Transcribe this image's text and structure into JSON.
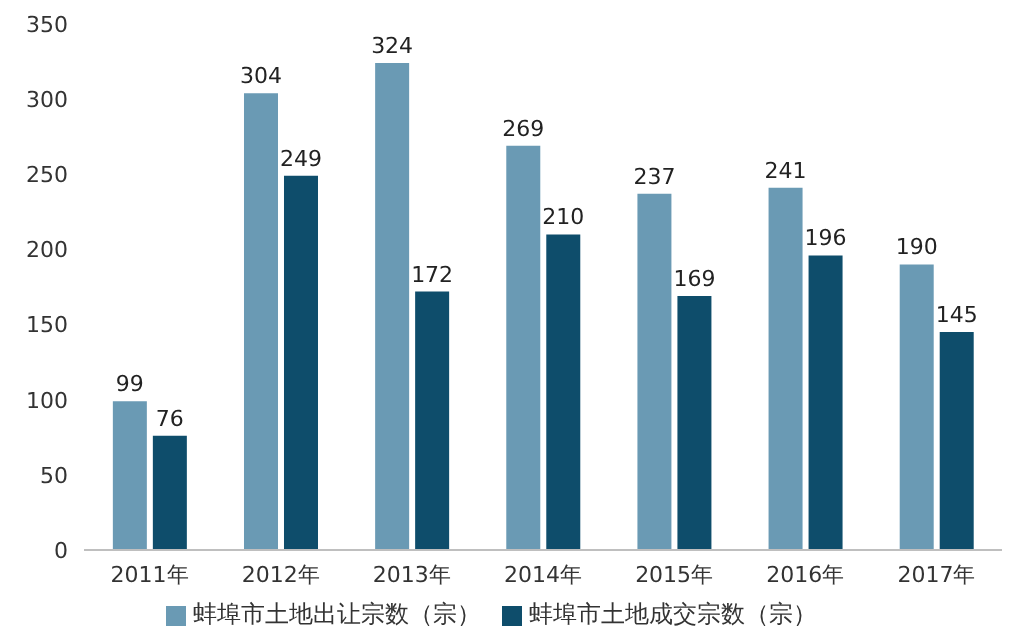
{
  "chart_data": {
    "type": "bar",
    "categories": [
      "2011年",
      "2012年",
      "2013年",
      "2014年",
      "2015年",
      "2016年",
      "2017年"
    ],
    "series": [
      {
        "name": "蚌埠市土地出让宗数（宗）",
        "color": "#6a9ab4",
        "values": [
          99,
          304,
          324,
          269,
          237,
          241,
          190
        ]
      },
      {
        "name": "蚌埠市土地成交宗数（宗）",
        "color": "#0e4d6b",
        "values": [
          76,
          249,
          172,
          210,
          169,
          196,
          145
        ]
      }
    ],
    "ylim": [
      0,
      350
    ],
    "yticks": [
      0,
      50,
      100,
      150,
      200,
      250,
      300,
      350
    ],
    "legend": "bottom",
    "data_labels": true
  }
}
